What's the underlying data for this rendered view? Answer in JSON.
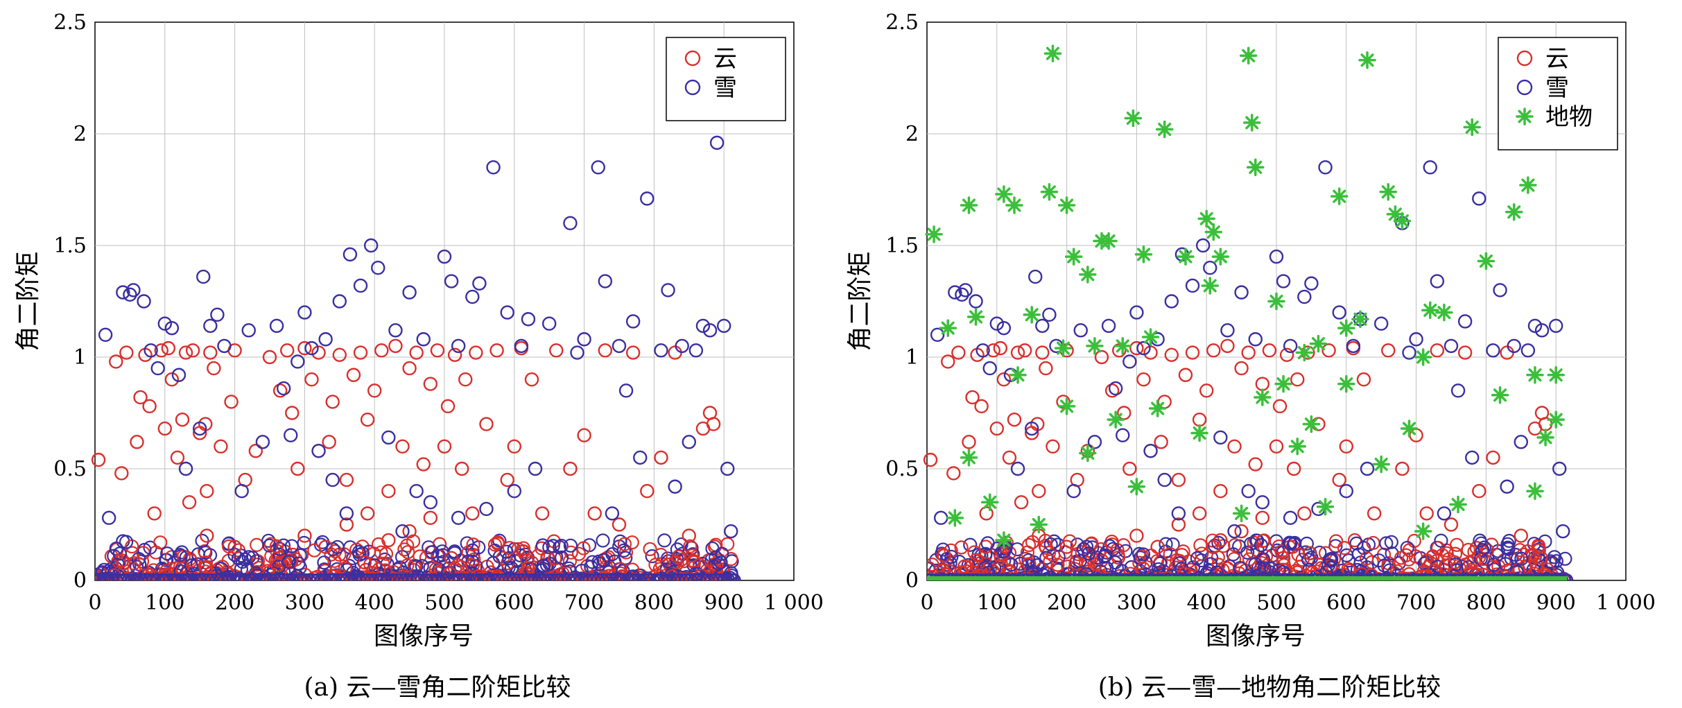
{
  "chart_data": [
    {
      "type": "scatter",
      "caption": "(a) 云—雪角二阶矩比较",
      "xlabel": "图像序号",
      "ylabel": "角二阶矩",
      "xlim": [
        0,
        1000
      ],
      "ylim": [
        0,
        2.5
      ],
      "xticks": [
        "0",
        "100",
        "200",
        "300",
        "400",
        "500",
        "600",
        "700",
        "800",
        "900",
        "1 000"
      ],
      "yticks": [
        "0",
        "0.5",
        "1",
        "1.5",
        "2",
        "2.5"
      ],
      "grid": true,
      "legend_position": "top-right",
      "series": [
        {
          "name": "云",
          "marker": "circle",
          "color": "#d9302c",
          "x": [
            5,
            30,
            38,
            45,
            60,
            65,
            72,
            78,
            85,
            95,
            100,
            105,
            110,
            118,
            125,
            130,
            135,
            140,
            150,
            158,
            160,
            165,
            170,
            180,
            195,
            200,
            215,
            230,
            250,
            265,
            275,
            282,
            290,
            300,
            310,
            320,
            335,
            340,
            350,
            360,
            370,
            380,
            390,
            400,
            410,
            420,
            430,
            440,
            450,
            460,
            470,
            480,
            490,
            500,
            505,
            515,
            525,
            530,
            545,
            560,
            575,
            590,
            600,
            610,
            625,
            640,
            660,
            680,
            700,
            715,
            730,
            750,
            770,
            790,
            810,
            830,
            850,
            870,
            880,
            885,
            300,
            330,
            360,
            390,
            420,
            450,
            480,
            510,
            540,
            200,
            160
          ],
          "y": [
            0.54,
            0.98,
            0.48,
            1.02,
            0.62,
            0.82,
            1.01,
            0.78,
            0.3,
            1.03,
            0.68,
            1.04,
            0.9,
            0.55,
            0.72,
            1.02,
            0.35,
            1.03,
            0.66,
            0.7,
            0.4,
            1.02,
            0.95,
            0.6,
            0.8,
            1.03,
            0.45,
            0.58,
            1.0,
            0.85,
            1.03,
            0.75,
            0.5,
            1.04,
            0.9,
            1.02,
            0.62,
            0.8,
            1.01,
            0.45,
            0.92,
            1.02,
            0.72,
            0.85,
            1.03,
            0.4,
            1.05,
            0.6,
            0.95,
            1.02,
            0.52,
            0.88,
            1.03,
            0.6,
            0.78,
            1.01,
            0.5,
            0.9,
            1.02,
            0.7,
            1.03,
            0.45,
            0.6,
            1.04,
            0.9,
            0.3,
            1.03,
            0.5,
            0.65,
            0.3,
            1.03,
            0.25,
            1.02,
            0.4,
            0.55,
            1.02,
            0.2,
            0.68,
            0.75,
            0.7,
            0.2,
            0.15,
            0.25,
            0.3,
            0.18,
            0.22,
            0.28,
            0.1,
            0.3,
            0.15,
            0.2
          ]
        },
        {
          "name": "雪",
          "marker": "circle",
          "color": "#3a2fa0",
          "x": [
            15,
            40,
            50,
            55,
            70,
            80,
            100,
            110,
            120,
            150,
            155,
            165,
            175,
            185,
            220,
            260,
            270,
            280,
            290,
            300,
            310,
            330,
            350,
            365,
            380,
            395,
            405,
            430,
            450,
            470,
            500,
            510,
            520,
            540,
            550,
            570,
            590,
            610,
            620,
            650,
            680,
            690,
            700,
            720,
            730,
            750,
            770,
            790,
            810,
            820,
            840,
            860,
            870,
            880,
            890,
            900,
            905,
            910,
            20,
            90,
            130,
            210,
            240,
            320,
            340,
            420,
            460,
            480,
            560,
            630,
            760,
            780,
            830,
            850,
            360,
            440,
            520,
            600,
            740
          ],
          "y": [
            1.1,
            1.29,
            1.28,
            1.3,
            1.25,
            1.03,
            1.15,
            1.13,
            0.92,
            0.68,
            1.36,
            1.14,
            1.19,
            1.05,
            1.12,
            1.14,
            0.86,
            0.65,
            0.98,
            1.2,
            1.04,
            1.08,
            1.25,
            1.46,
            1.32,
            1.5,
            1.4,
            1.12,
            1.29,
            1.08,
            1.45,
            1.34,
            1.05,
            1.27,
            1.33,
            1.85,
            1.2,
            1.05,
            1.17,
            1.15,
            1.6,
            1.02,
            1.08,
            1.85,
            1.34,
            1.05,
            1.16,
            1.71,
            1.03,
            1.3,
            1.05,
            1.03,
            1.14,
            1.12,
            1.96,
            1.14,
            0.5,
            0.22,
            0.28,
            0.95,
            0.5,
            0.4,
            0.62,
            0.58,
            0.45,
            0.64,
            0.4,
            0.35,
            0.32,
            0.5,
            0.85,
            0.55,
            0.42,
            0.62,
            0.3,
            0.22,
            0.28,
            0.4,
            0.3
          ]
        }
      ]
    },
    {
      "type": "scatter",
      "caption": "(b) 云—雪—地物角二阶矩比较",
      "xlabel": "图像序号",
      "ylabel": "角二阶矩",
      "xlim": [
        0,
        1000
      ],
      "ylim": [
        0,
        2.5
      ],
      "xticks": [
        "0",
        "100",
        "200",
        "300",
        "400",
        "500",
        "600",
        "700",
        "800",
        "900",
        "1 000"
      ],
      "yticks": [
        "0",
        "0.5",
        "1",
        "1.5",
        "2",
        "2.5"
      ],
      "grid": true,
      "legend_position": "top-right",
      "series": [
        {
          "name": "云",
          "marker": "circle",
          "color": "#d9302c",
          "x": [
            5,
            30,
            38,
            45,
            60,
            65,
            72,
            78,
            85,
            95,
            100,
            105,
            110,
            118,
            125,
            130,
            135,
            140,
            150,
            158,
            160,
            165,
            170,
            180,
            195,
            200,
            215,
            230,
            250,
            265,
            275,
            282,
            290,
            300,
            310,
            320,
            335,
            340,
            350,
            360,
            370,
            380,
            390,
            400,
            410,
            420,
            430,
            440,
            450,
            460,
            470,
            480,
            490,
            500,
            505,
            515,
            525,
            530,
            545,
            560,
            575,
            590,
            600,
            610,
            625,
            640,
            660,
            680,
            700,
            715,
            730,
            750,
            770,
            790,
            810,
            830,
            850,
            870,
            880,
            885,
            300,
            330,
            360,
            390,
            420,
            450,
            480,
            510,
            540,
            200,
            160
          ],
          "y": [
            0.54,
            0.98,
            0.48,
            1.02,
            0.62,
            0.82,
            1.01,
            0.78,
            0.3,
            1.03,
            0.68,
            1.04,
            0.9,
            0.55,
            0.72,
            1.02,
            0.35,
            1.03,
            0.66,
            0.7,
            0.4,
            1.02,
            0.95,
            0.6,
            0.8,
            1.03,
            0.45,
            0.58,
            1.0,
            0.85,
            1.03,
            0.75,
            0.5,
            1.04,
            0.9,
            1.02,
            0.62,
            0.8,
            1.01,
            0.45,
            0.92,
            1.02,
            0.72,
            0.85,
            1.03,
            0.4,
            1.05,
            0.6,
            0.95,
            1.02,
            0.52,
            0.88,
            1.03,
            0.6,
            0.78,
            1.01,
            0.5,
            0.9,
            1.02,
            0.7,
            1.03,
            0.45,
            0.6,
            1.04,
            0.9,
            0.3,
            1.03,
            0.5,
            0.65,
            0.3,
            1.03,
            0.25,
            1.02,
            0.4,
            0.55,
            1.02,
            0.2,
            0.68,
            0.75,
            0.7,
            0.2,
            0.15,
            0.25,
            0.3,
            0.18,
            0.22,
            0.28,
            0.1,
            0.3,
            0.15,
            0.2
          ]
        },
        {
          "name": "雪",
          "marker": "circle",
          "color": "#3a2fa0",
          "x": [
            15,
            40,
            50,
            55,
            70,
            80,
            100,
            110,
            120,
            150,
            155,
            165,
            175,
            185,
            220,
            260,
            270,
            280,
            290,
            300,
            310,
            330,
            350,
            365,
            380,
            395,
            405,
            430,
            450,
            470,
            500,
            510,
            520,
            540,
            550,
            570,
            590,
            610,
            620,
            650,
            680,
            690,
            700,
            720,
            730,
            750,
            770,
            790,
            810,
            820,
            840,
            860,
            870,
            880,
            890,
            900,
            905,
            910,
            20,
            90,
            130,
            210,
            240,
            320,
            340,
            420,
            460,
            480,
            560,
            630,
            760,
            780,
            830,
            850,
            360,
            440,
            520,
            600,
            740
          ],
          "y": [
            1.1,
            1.29,
            1.28,
            1.3,
            1.25,
            1.03,
            1.15,
            1.13,
            0.92,
            0.68,
            1.36,
            1.14,
            1.19,
            1.05,
            1.12,
            1.14,
            0.86,
            0.65,
            0.98,
            1.2,
            1.04,
            1.08,
            1.25,
            1.46,
            1.32,
            1.5,
            1.4,
            1.12,
            1.29,
            1.08,
            1.45,
            1.34,
            1.05,
            1.27,
            1.33,
            1.85,
            1.2,
            1.05,
            1.17,
            1.15,
            1.6,
            1.02,
            1.08,
            1.85,
            1.34,
            1.05,
            1.16,
            1.71,
            1.03,
            1.3,
            1.05,
            1.03,
            1.14,
            1.12,
            1.96,
            1.14,
            0.5,
            0.22,
            0.28,
            0.95,
            0.5,
            0.4,
            0.62,
            0.58,
            0.45,
            0.64,
            0.4,
            0.35,
            0.32,
            0.5,
            0.85,
            0.55,
            0.42,
            0.62,
            0.3,
            0.22,
            0.28,
            0.4,
            0.3
          ]
        },
        {
          "name": "地物",
          "marker": "asterisk",
          "color": "#3bbf3b",
          "x": [
            10,
            30,
            60,
            70,
            110,
            125,
            150,
            175,
            180,
            195,
            200,
            210,
            230,
            240,
            250,
            260,
            280,
            295,
            310,
            320,
            340,
            370,
            400,
            405,
            410,
            420,
            460,
            465,
            470,
            500,
            540,
            560,
            590,
            600,
            620,
            630,
            660,
            670,
            680,
            710,
            720,
            740,
            780,
            800,
            840,
            860,
            870,
            885,
            900,
            60,
            90,
            130,
            160,
            200,
            230,
            270,
            330,
            390,
            450,
            480,
            510,
            550,
            570,
            600,
            650,
            690,
            710,
            760,
            820,
            870,
            900,
            40,
            110,
            300,
            530
          ],
          "y": [
            1.55,
            1.13,
            1.68,
            1.18,
            1.73,
            1.68,
            1.19,
            1.74,
            2.36,
            1.04,
            1.68,
            1.45,
            1.37,
            1.05,
            1.52,
            1.52,
            1.05,
            2.07,
            1.46,
            1.09,
            2.02,
            1.45,
            1.62,
            1.32,
            1.56,
            1.45,
            2.35,
            2.05,
            1.85,
            1.25,
            1.02,
            1.06,
            1.72,
            1.13,
            1.17,
            2.33,
            1.74,
            1.64,
            1.61,
            1.0,
            1.21,
            1.2,
            2.03,
            1.43,
            1.65,
            1.77,
            0.92,
            0.64,
            0.92,
            0.55,
            0.35,
            0.92,
            0.25,
            0.78,
            0.57,
            0.72,
            0.77,
            0.66,
            0.3,
            0.82,
            0.88,
            0.7,
            0.33,
            0.88,
            0.52,
            0.68,
            0.22,
            0.34,
            0.83,
            0.4,
            0.72,
            0.28,
            0.18,
            0.42,
            0.6
          ]
        }
      ]
    }
  ]
}
